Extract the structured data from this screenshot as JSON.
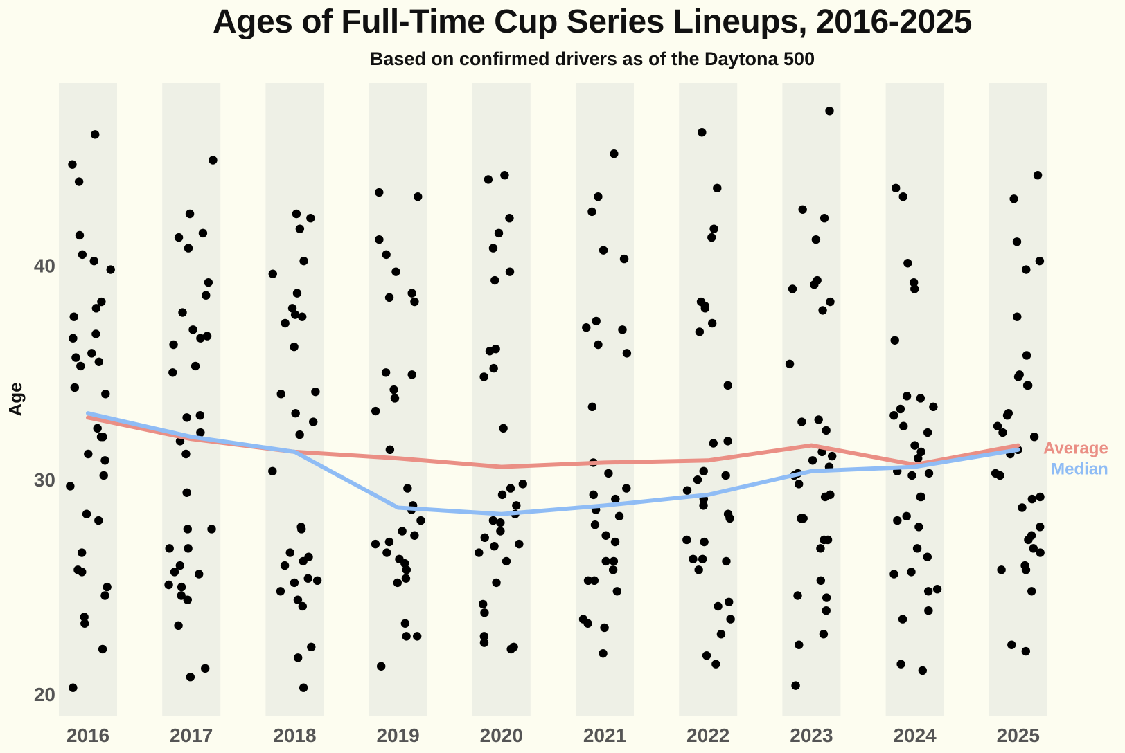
{
  "chart_data": {
    "type": "scatter",
    "title": "Ages of Full-Time Cup Series Lineups, 2016-2025",
    "subtitle": "Based on confirmed drivers as of the Daytona 500",
    "xlabel": "",
    "ylabel": "Age",
    "categories": [
      "2016",
      "2017",
      "2018",
      "2019",
      "2020",
      "2021",
      "2022",
      "2023",
      "2024",
      "2025"
    ],
    "ylim": [
      19,
      48.5
    ],
    "yticks": [
      20,
      30,
      40
    ],
    "grid": false,
    "colors": {
      "background": "#fdfdf0",
      "band": "#eef0e6",
      "point": "#000000",
      "average": "#ea8f85",
      "median": "#8fbcf5"
    },
    "points": [
      [
        46.1,
        43.9,
        40.2,
        39.8,
        38.0,
        36.8,
        36.6,
        34.0,
        32.4,
        32.0,
        35.5,
        35.3,
        38.3,
        37.6,
        35.9,
        35.7,
        34.3,
        32.0,
        30.9,
        30.2,
        29.7,
        28.4,
        28.1,
        26.6,
        25.8,
        25.7,
        25.0,
        24.6,
        23.6,
        23.3,
        22.1,
        20.3,
        44.7,
        41.4,
        40.5,
        31.2
      ],
      [
        44.9,
        42.4,
        41.5,
        41.3,
        40.8,
        39.2,
        38.6,
        37.8,
        37.0,
        36.7,
        36.6,
        36.3,
        35.3,
        35.0,
        33.0,
        32.9,
        32.2,
        31.8,
        31.2,
        29.4,
        27.7,
        27.7,
        26.8,
        26.8,
        26.0,
        25.7,
        25.6,
        25.1,
        25.0,
        24.6,
        24.4,
        23.2,
        21.2,
        20.8
      ],
      [
        42.4,
        42.2,
        41.7,
        40.2,
        39.6,
        38.7,
        38.0,
        37.7,
        37.6,
        37.3,
        36.2,
        34.1,
        34.0,
        33.1,
        32.7,
        32.1,
        30.4,
        27.8,
        27.7,
        26.6,
        26.4,
        26.2,
        26.0,
        25.4,
        25.3,
        25.2,
        24.8,
        24.4,
        24.1,
        22.2,
        21.7,
        20.3
      ],
      [
        43.4,
        43.2,
        41.2,
        40.5,
        39.7,
        38.7,
        38.5,
        38.3,
        35.0,
        34.9,
        34.2,
        33.8,
        33.2,
        31.4,
        29.6,
        28.8,
        28.6,
        28.1,
        27.6,
        27.4,
        27.1,
        27.0,
        26.6,
        26.3,
        26.1,
        25.8,
        25.4,
        25.2,
        23.3,
        22.7,
        22.7,
        21.3
      ],
      [
        44.2,
        44.0,
        42.2,
        41.5,
        40.8,
        39.7,
        39.3,
        36.1,
        36.0,
        35.2,
        34.8,
        32.4,
        29.8,
        29.6,
        29.3,
        28.8,
        28.4,
        28.1,
        28.0,
        27.6,
        27.3,
        27.0,
        26.9,
        26.6,
        26.2,
        25.2,
        24.2,
        23.8,
        22.7,
        22.4,
        22.2,
        22.1
      ],
      [
        45.2,
        43.2,
        42.5,
        40.7,
        40.3,
        37.4,
        37.1,
        37.0,
        36.3,
        35.9,
        33.4,
        30.8,
        30.3,
        29.6,
        29.3,
        29.1,
        28.6,
        28.3,
        27.9,
        27.4,
        27.1,
        26.2,
        26.2,
        25.8,
        25.3,
        25.3,
        24.8,
        23.5,
        23.3,
        23.1,
        21.9
      ],
      [
        46.2,
        43.6,
        41.7,
        41.3,
        38.3,
        38.1,
        38.0,
        37.3,
        36.9,
        34.4,
        31.8,
        31.7,
        30.4,
        30.2,
        30.0,
        29.5,
        29.1,
        28.8,
        28.4,
        28.2,
        27.2,
        27.1,
        26.3,
        26.3,
        26.2,
        25.8,
        24.3,
        24.1,
        23.5,
        22.8,
        21.8,
        21.4
      ],
      [
        47.2,
        42.6,
        42.2,
        41.2,
        39.3,
        39.1,
        38.9,
        38.3,
        37.9,
        35.4,
        32.8,
        32.7,
        32.3,
        31.3,
        31.1,
        30.9,
        30.6,
        30.3,
        30.2,
        29.8,
        29.3,
        29.2,
        28.2,
        28.2,
        27.2,
        27.2,
        26.8,
        25.3,
        24.6,
        24.5,
        23.9,
        22.8,
        22.3,
        20.4
      ],
      [
        43.6,
        43.2,
        40.1,
        39.2,
        38.9,
        36.5,
        33.9,
        33.8,
        33.4,
        33.3,
        33.0,
        32.5,
        32.2,
        31.6,
        31.3,
        31.0,
        30.4,
        30.3,
        30.2,
        29.2,
        29.2,
        28.3,
        28.1,
        27.8,
        26.8,
        26.4,
        25.7,
        25.6,
        24.9,
        24.8,
        23.9,
        23.5,
        21.4,
        21.1
      ],
      [
        44.2,
        43.1,
        41.1,
        40.2,
        39.8,
        37.6,
        35.8,
        34.9,
        34.8,
        34.4,
        34.4,
        33.1,
        33.0,
        32.5,
        32.2,
        32.0,
        31.4,
        31.2,
        30.3,
        30.2,
        29.2,
        29.1,
        28.7,
        27.8,
        27.4,
        27.2,
        26.8,
        26.6,
        26.0,
        25.8,
        25.8,
        24.8,
        22.3,
        22.0
      ]
    ],
    "series": [
      {
        "name": "Average",
        "values": [
          32.9,
          31.9,
          31.3,
          31.0,
          30.6,
          30.8,
          30.9,
          31.6,
          30.7,
          31.6
        ]
      },
      {
        "name": "Median",
        "values": [
          33.1,
          32.0,
          31.3,
          28.7,
          28.4,
          28.8,
          29.3,
          30.4,
          30.6,
          31.4
        ]
      }
    ]
  }
}
